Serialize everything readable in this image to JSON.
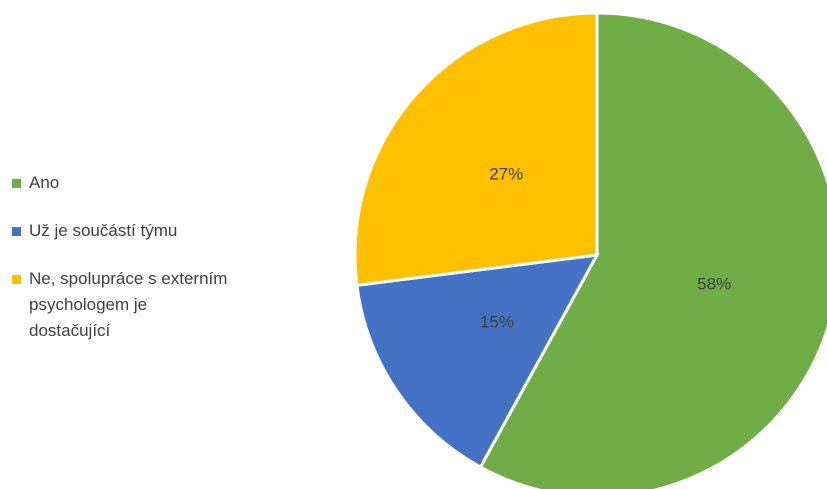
{
  "chart_data": {
    "type": "pie",
    "categories": [
      "Ano",
      "Už je součástí týmu",
      "Ne, spolupráce s externím psychologem je dostačující"
    ],
    "values": [
      58,
      15,
      27
    ],
    "value_labels": [
      "58%",
      "15%",
      "27%"
    ],
    "colors": [
      "#70ad47",
      "#4472c4",
      "#ffc000"
    ],
    "legend": "left"
  }
}
